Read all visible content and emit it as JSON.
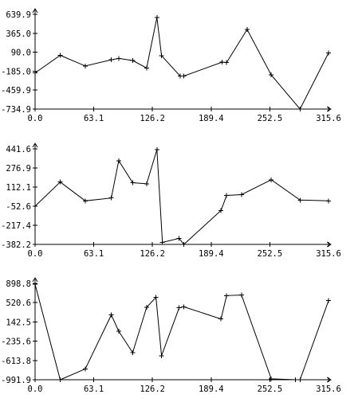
{
  "colors": {
    "background": "#ffffff",
    "axis": "#000000",
    "series": "#000000"
  },
  "chart_data": [
    {
      "type": "line",
      "title": "",
      "xlabel": "",
      "ylabel": "",
      "xlim": [
        0,
        315.6
      ],
      "ylim": [
        -734.9,
        639.9
      ],
      "x_ticks": [
        "0.0",
        "63.1",
        "126.2",
        "189.4",
        "252.5",
        "315.6"
      ],
      "y_ticks": [
        "639.9",
        "365.0",
        "90.0",
        "-185.0",
        "-459.9",
        "-734.9"
      ],
      "grid": false,
      "legend": "none",
      "markers": "+",
      "x": [
        0,
        27,
        54,
        82,
        90,
        105,
        120,
        131,
        136,
        156,
        160,
        201,
        206,
        228,
        254,
        285,
        315.6
      ],
      "y": [
        -210,
        45,
        -110,
        -20,
        0,
        -30,
        -140,
        595,
        40,
        -255,
        -255,
        -55,
        -60,
        420,
        -240,
        -734.9,
        80
      ]
    },
    {
      "type": "line",
      "title": "",
      "xlabel": "",
      "ylabel": "",
      "xlim": [
        0,
        315.6
      ],
      "ylim": [
        -382.2,
        441.6
      ],
      "x_ticks": [
        "0.0",
        "63.1",
        "126.2",
        "189.4",
        "252.5",
        "315.6"
      ],
      "y_ticks": [
        "441.6",
        "276.9",
        "112.1",
        "-52.6",
        "-217.4",
        "-382.2"
      ],
      "grid": false,
      "legend": "none",
      "markers": "+",
      "x": [
        0,
        27,
        54,
        82,
        90,
        105,
        120,
        131,
        137,
        155,
        160,
        200,
        206,
        222,
        254,
        285,
        315.6
      ],
      "y": [
        -52.6,
        155,
        -7,
        18,
        340,
        150,
        140,
        435,
        -365,
        -330,
        -382.2,
        -90,
        40,
        47,
        175,
        0,
        -7
      ]
    },
    {
      "type": "line",
      "title": "",
      "xlabel": "",
      "ylabel": "",
      "xlim": [
        0,
        315.6
      ],
      "ylim": [
        -991.9,
        898.8
      ],
      "x_ticks": [
        "0.0",
        "63.1",
        "126.2",
        "189.4",
        "252.5",
        "315.6"
      ],
      "y_ticks": [
        "898.8",
        "520.6",
        "142.5",
        "-235.6",
        "-613.8",
        "-991.9"
      ],
      "grid": false,
      "legend": "none",
      "markers": "+",
      "x": [
        0,
        27,
        54,
        82,
        90,
        105,
        120,
        130,
        136,
        155,
        160,
        200,
        206,
        222,
        254,
        280,
        285,
        315.6
      ],
      "y": [
        880,
        -991.9,
        -780,
        280,
        -40,
        -460,
        430,
        625,
        -520,
        420,
        440,
        200,
        660,
        670,
        -975,
        -991.9,
        -991.9,
        560
      ]
    }
  ]
}
